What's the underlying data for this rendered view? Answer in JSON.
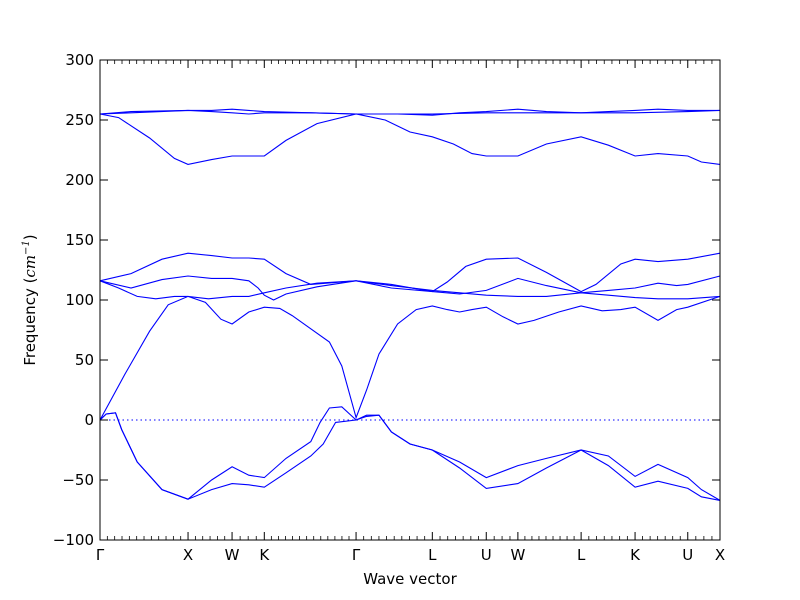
{
  "chart_data": {
    "type": "line",
    "xlabel": "Wave vector",
    "ylabel_prefix": "Frequency (",
    "ylabel_math": "cm",
    "ylabel_exp": "−1",
    "ylabel_suffix": ")",
    "ylim": [
      -100,
      300
    ],
    "yticks": [
      -100,
      -50,
      0,
      50,
      100,
      150,
      200,
      250,
      300
    ],
    "ytick_labels": [
      "−100",
      "−50",
      "0",
      "50",
      "100",
      "150",
      "200",
      "250",
      "300"
    ],
    "xlim": [
      0,
      1
    ],
    "xticks": [
      {
        "label": "Γ",
        "x": 0.0
      },
      {
        "label": "X",
        "x": 0.142
      },
      {
        "label": "W",
        "x": 0.213
      },
      {
        "label": "K",
        "x": 0.265
      },
      {
        "label": "Γ",
        "x": 0.413
      },
      {
        "label": "L",
        "x": 0.536
      },
      {
        "label": "U",
        "x": 0.623
      },
      {
        "label": "W",
        "x": 0.674
      },
      {
        "label": "L",
        "x": 0.776
      },
      {
        "label": "K",
        "x": 0.863
      },
      {
        "label": "U",
        "x": 0.948
      },
      {
        "label": "X",
        "x": 1.0
      }
    ],
    "zero_line": 0,
    "series": [
      {
        "values": [
          [
            0,
            0
          ],
          [
            0.04,
            38
          ],
          [
            0.08,
            74
          ],
          [
            0.11,
            96
          ],
          [
            0.142,
            103
          ],
          [
            0.175,
            101
          ],
          [
            0.213,
            103
          ],
          [
            0.24,
            103
          ],
          [
            0.265,
            106
          ],
          [
            0.3,
            110
          ],
          [
            0.35,
            114
          ],
          [
            0.413,
            116
          ],
          [
            0.47,
            112
          ],
          [
            0.536,
            108
          ],
          [
            0.58,
            106
          ],
          [
            0.623,
            104
          ],
          [
            0.674,
            103
          ],
          [
            0.72,
            103
          ],
          [
            0.776,
            106
          ],
          [
            0.82,
            104
          ],
          [
            0.863,
            102
          ],
          [
            0.9,
            101
          ],
          [
            0.948,
            101
          ],
          [
            1.0,
            103
          ]
        ]
      },
      {
        "values": [
          [
            0,
            116
          ],
          [
            0.03,
            110
          ],
          [
            0.06,
            103
          ],
          [
            0.09,
            101
          ],
          [
            0.12,
            103
          ],
          [
            0.142,
            103
          ],
          [
            0.17,
            98
          ],
          [
            0.195,
            84
          ],
          [
            0.213,
            80
          ],
          [
            0.24,
            90
          ],
          [
            0.265,
            94
          ],
          [
            0.29,
            93
          ],
          [
            0.31,
            87
          ],
          [
            0.34,
            76
          ],
          [
            0.37,
            65
          ],
          [
            0.39,
            45
          ],
          [
            0.413,
            2
          ],
          [
            0.43,
            25
          ],
          [
            0.45,
            55
          ],
          [
            0.48,
            80
          ],
          [
            0.51,
            92
          ],
          [
            0.536,
            95
          ],
          [
            0.56,
            92
          ],
          [
            0.58,
            90
          ],
          [
            0.6,
            92
          ],
          [
            0.623,
            94
          ],
          [
            0.65,
            86
          ],
          [
            0.674,
            80
          ],
          [
            0.7,
            83
          ],
          [
            0.74,
            90
          ],
          [
            0.776,
            95
          ],
          [
            0.81,
            91
          ],
          [
            0.84,
            92
          ],
          [
            0.863,
            94
          ],
          [
            0.9,
            83
          ],
          [
            0.93,
            92
          ],
          [
            0.948,
            94
          ],
          [
            1.0,
            103
          ]
        ]
      },
      {
        "values": [
          [
            0,
            116
          ],
          [
            0.05,
            110
          ],
          [
            0.1,
            117
          ],
          [
            0.142,
            120
          ],
          [
            0.18,
            118
          ],
          [
            0.213,
            118
          ],
          [
            0.24,
            116
          ],
          [
            0.255,
            110
          ],
          [
            0.265,
            104
          ],
          [
            0.28,
            100
          ],
          [
            0.3,
            105
          ],
          [
            0.35,
            111
          ],
          [
            0.413,
            116
          ],
          [
            0.47,
            113
          ],
          [
            0.536,
            107
          ],
          [
            0.58,
            105
          ],
          [
            0.623,
            108
          ],
          [
            0.674,
            118
          ],
          [
            0.72,
            112
          ],
          [
            0.776,
            106
          ],
          [
            0.82,
            108
          ],
          [
            0.863,
            110
          ],
          [
            0.9,
            114
          ],
          [
            0.93,
            112
          ],
          [
            0.948,
            113
          ],
          [
            1.0,
            120
          ]
        ]
      },
      {
        "values": [
          [
            0,
            116
          ],
          [
            0.05,
            122
          ],
          [
            0.1,
            134
          ],
          [
            0.142,
            139
          ],
          [
            0.18,
            137
          ],
          [
            0.213,
            135
          ],
          [
            0.24,
            135
          ],
          [
            0.265,
            134
          ],
          [
            0.3,
            122
          ],
          [
            0.34,
            113
          ],
          [
            0.413,
            116
          ],
          [
            0.47,
            110
          ],
          [
            0.536,
            107
          ],
          [
            0.56,
            115
          ],
          [
            0.59,
            128
          ],
          [
            0.623,
            134
          ],
          [
            0.674,
            135
          ],
          [
            0.72,
            123
          ],
          [
            0.776,
            107
          ],
          [
            0.8,
            113
          ],
          [
            0.84,
            130
          ],
          [
            0.863,
            134
          ],
          [
            0.9,
            132
          ],
          [
            0.948,
            134
          ],
          [
            1.0,
            139
          ]
        ]
      },
      {
        "values": [
          [
            0,
            255
          ],
          [
            0.03,
            252
          ],
          [
            0.08,
            235
          ],
          [
            0.12,
            218
          ],
          [
            0.142,
            213
          ],
          [
            0.18,
            217
          ],
          [
            0.213,
            220
          ],
          [
            0.24,
            220
          ],
          [
            0.265,
            220
          ],
          [
            0.3,
            233
          ],
          [
            0.35,
            247
          ],
          [
            0.413,
            255
          ],
          [
            0.46,
            250
          ],
          [
            0.5,
            240
          ],
          [
            0.536,
            236
          ],
          [
            0.57,
            230
          ],
          [
            0.6,
            222
          ],
          [
            0.623,
            220
          ],
          [
            0.674,
            220
          ],
          [
            0.72,
            230
          ],
          [
            0.776,
            236
          ],
          [
            0.82,
            229
          ],
          [
            0.863,
            220
          ],
          [
            0.9,
            222
          ],
          [
            0.948,
            220
          ],
          [
            0.97,
            215
          ],
          [
            1.0,
            213
          ]
        ]
      },
      {
        "values": [
          [
            0,
            255
          ],
          [
            0.05,
            256
          ],
          [
            0.142,
            258
          ],
          [
            0.18,
            257
          ],
          [
            0.213,
            256
          ],
          [
            0.24,
            255
          ],
          [
            0.265,
            256
          ],
          [
            0.34,
            256
          ],
          [
            0.413,
            255
          ],
          [
            0.536,
            255
          ],
          [
            0.623,
            256
          ],
          [
            0.674,
            256
          ],
          [
            0.776,
            256
          ],
          [
            0.863,
            256
          ],
          [
            0.948,
            257
          ],
          [
            1.0,
            258
          ]
        ]
      },
      {
        "values": [
          [
            0,
            255
          ],
          [
            0.05,
            257
          ],
          [
            0.142,
            258
          ],
          [
            0.18,
            258
          ],
          [
            0.213,
            259
          ],
          [
            0.24,
            258
          ],
          [
            0.265,
            257
          ],
          [
            0.34,
            256
          ],
          [
            0.413,
            255
          ],
          [
            0.48,
            255
          ],
          [
            0.536,
            254
          ],
          [
            0.58,
            256
          ],
          [
            0.623,
            257
          ],
          [
            0.674,
            259
          ],
          [
            0.72,
            257
          ],
          [
            0.776,
            256
          ],
          [
            0.82,
            257
          ],
          [
            0.863,
            258
          ],
          [
            0.9,
            259
          ],
          [
            0.948,
            258
          ],
          [
            1.0,
            258
          ]
        ]
      },
      {
        "values": [
          [
            0,
            0
          ],
          [
            0.01,
            5
          ],
          [
            0.025,
            6
          ],
          [
            0.035,
            -8
          ],
          [
            0.06,
            -35
          ],
          [
            0.1,
            -58
          ],
          [
            0.142,
            -66
          ],
          [
            0.18,
            -58
          ],
          [
            0.213,
            -53
          ],
          [
            0.24,
            -54
          ],
          [
            0.265,
            -56
          ],
          [
            0.3,
            -44
          ],
          [
            0.34,
            -30
          ],
          [
            0.36,
            -20
          ],
          [
            0.38,
            -2
          ],
          [
            0.413,
            0
          ],
          [
            0.43,
            3
          ],
          [
            0.45,
            4
          ],
          [
            0.47,
            -10
          ],
          [
            0.5,
            -20
          ],
          [
            0.536,
            -25
          ],
          [
            0.58,
            -40
          ],
          [
            0.623,
            -57
          ],
          [
            0.674,
            -53
          ],
          [
            0.72,
            -40
          ],
          [
            0.776,
            -25
          ],
          [
            0.82,
            -38
          ],
          [
            0.863,
            -56
          ],
          [
            0.9,
            -51
          ],
          [
            0.948,
            -57
          ],
          [
            0.97,
            -64
          ],
          [
            1.0,
            -67
          ]
        ]
      },
      {
        "values": [
          [
            0,
            0
          ],
          [
            0.01,
            5
          ],
          [
            0.025,
            6
          ],
          [
            0.035,
            -8
          ],
          [
            0.06,
            -35
          ],
          [
            0.1,
            -58
          ],
          [
            0.142,
            -66
          ],
          [
            0.18,
            -50
          ],
          [
            0.213,
            -39
          ],
          [
            0.24,
            -46
          ],
          [
            0.265,
            -48
          ],
          [
            0.3,
            -32
          ],
          [
            0.34,
            -18
          ],
          [
            0.355,
            -2
          ],
          [
            0.37,
            10
          ],
          [
            0.39,
            11
          ],
          [
            0.413,
            0
          ],
          [
            0.43,
            4
          ],
          [
            0.45,
            4
          ],
          [
            0.47,
            -10
          ],
          [
            0.5,
            -20
          ],
          [
            0.536,
            -25
          ],
          [
            0.58,
            -35
          ],
          [
            0.623,
            -48
          ],
          [
            0.674,
            -38
          ],
          [
            0.72,
            -32
          ],
          [
            0.776,
            -25
          ],
          [
            0.82,
            -30
          ],
          [
            0.863,
            -47
          ],
          [
            0.9,
            -37
          ],
          [
            0.948,
            -48
          ],
          [
            0.97,
            -58
          ],
          [
            1.0,
            -67
          ]
        ]
      }
    ]
  }
}
